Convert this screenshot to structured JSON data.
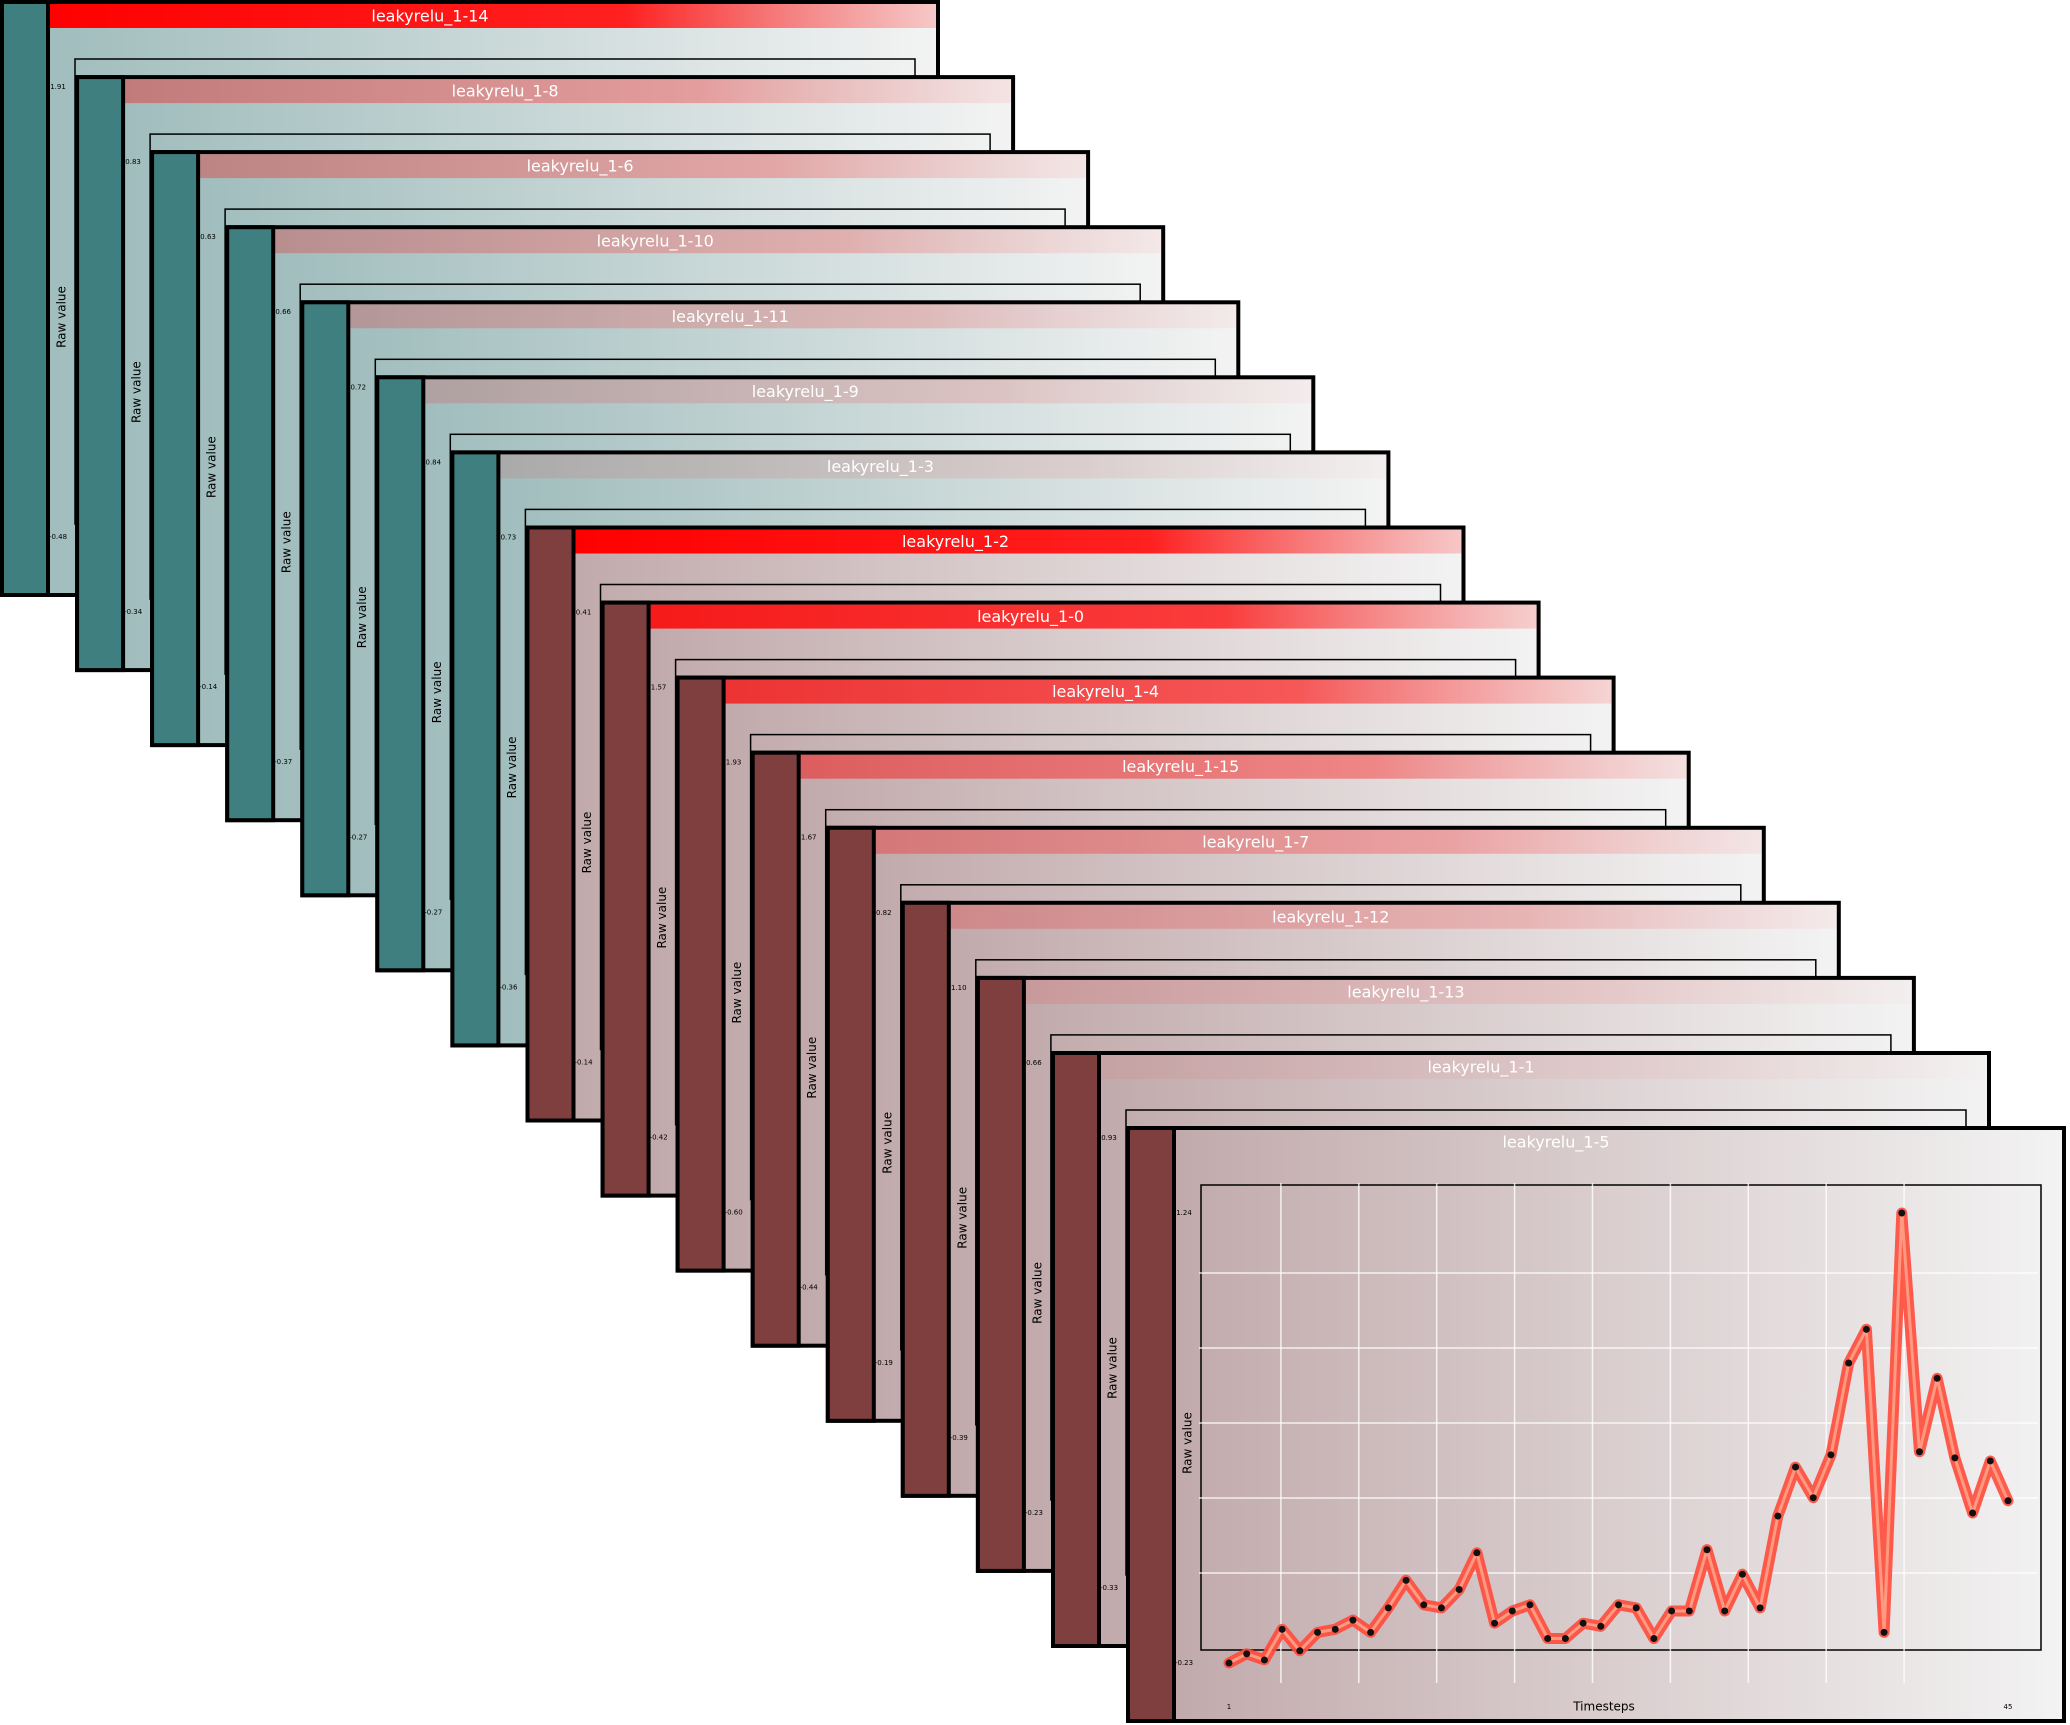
{
  "chart_data": [
    {
      "type": "line",
      "title": "leakyrelu_1-14",
      "y_label": "Raw value",
      "yticks": [
        1.91,
        -0.48
      ]
    },
    {
      "type": "line",
      "title": "leakyrelu_1-8",
      "y_label": "Raw value",
      "yticks": [
        0.83,
        -0.34
      ]
    },
    {
      "type": "line",
      "title": "leakyrelu_1-6",
      "y_label": "Raw value",
      "yticks": [
        0.63,
        -0.14
      ]
    },
    {
      "type": "line",
      "title": "leakyrelu_1-10",
      "y_label": "Raw value",
      "yticks": [
        0.66,
        -0.37
      ]
    },
    {
      "type": "line",
      "title": "leakyrelu_1-11",
      "y_label": "Raw value",
      "yticks": [
        0.72,
        -0.27
      ]
    },
    {
      "type": "line",
      "title": "leakyrelu_1-9",
      "y_label": "Raw value",
      "yticks": [
        0.84,
        -0.27
      ]
    },
    {
      "type": "line",
      "title": "leakyrelu_1-3",
      "y_label": "Raw value",
      "yticks": [
        0.73,
        -0.36
      ]
    },
    {
      "type": "line",
      "title": "leakyrelu_1-2",
      "y_label": "Raw value",
      "yticks": [
        0.41,
        -0.14
      ]
    },
    {
      "type": "line",
      "title": "leakyrelu_1-0",
      "y_label": "Raw value",
      "yticks": [
        1.57,
        -0.42
      ]
    },
    {
      "type": "line",
      "title": "leakyrelu_1-4",
      "y_label": "Raw value",
      "yticks": [
        1.93,
        {
          "value": -0.6,
          "label": "-0.60"
        }
      ]
    },
    {
      "type": "line",
      "title": "leakyrelu_1-15",
      "y_label": "Raw value",
      "yticks": [
        1.67,
        -0.44
      ]
    },
    {
      "type": "line",
      "title": "leakyrelu_1-7",
      "y_label": "Raw value",
      "yticks": [
        0.82,
        -0.19
      ]
    },
    {
      "type": "line",
      "title": "leakyrelu_1-12",
      "y_label": "Raw value",
      "yticks": [
        {
          "value": 1.1,
          "label": "1.10"
        },
        -0.39
      ]
    },
    {
      "type": "line",
      "title": "leakyrelu_1-13",
      "y_label": "Raw value",
      "yticks": [
        0.66,
        -0.23
      ]
    },
    {
      "type": "line",
      "title": "leakyrelu_1-1",
      "y_label": "Raw value",
      "yticks": [
        0.93,
        -0.33
      ]
    },
    {
      "type": "line",
      "title": "leakyrelu_1-5",
      "y_label": "Raw value",
      "x_label": "Timesteps",
      "ylim": [
        -0.23,
        1.24
      ],
      "yticks": [
        1.24,
        -0.23
      ],
      "xlim": [
        1,
        45
      ],
      "xticks": [
        1,
        45
      ],
      "x": [
        1,
        2,
        3,
        4,
        5,
        6,
        7,
        8,
        9,
        10,
        11,
        12,
        13,
        14,
        15,
        16,
        17,
        18,
        19,
        20,
        21,
        22,
        23,
        24,
        25,
        26,
        27,
        28,
        29,
        30,
        31,
        32,
        33,
        34,
        35,
        36,
        37,
        38,
        39,
        40,
        41,
        42,
        43,
        44,
        45
      ],
      "values": [
        -0.23,
        -0.2,
        -0.22,
        -0.12,
        -0.19,
        -0.13,
        -0.12,
        -0.09,
        -0.13,
        -0.05,
        0.04,
        -0.04,
        -0.05,
        0.01,
        0.13,
        -0.1,
        -0.06,
        -0.04,
        -0.15,
        -0.15,
        -0.1,
        -0.11,
        -0.04,
        -0.05,
        -0.15,
        -0.06,
        -0.06,
        0.14,
        -0.06,
        0.06,
        -0.05,
        0.25,
        0.41,
        0.31,
        0.45,
        0.75,
        0.86,
        -0.13,
        1.24,
        0.46,
        0.7,
        0.44,
        0.26,
        0.43,
        0.3
      ]
    }
  ]
}
